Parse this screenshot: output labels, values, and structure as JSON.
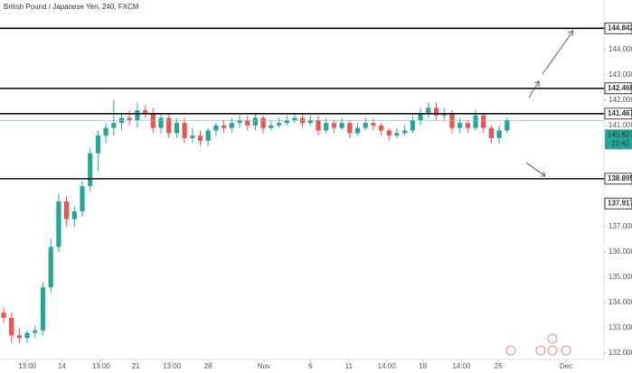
{
  "chart_data": {
    "type": "candlestick",
    "title": "British Pound / Japanese Yen, 240, FXCM",
    "open": [
      133.6,
      133.4,
      132.7,
      132.6,
      132.8,
      132.9,
      134.6,
      136.2,
      138.0,
      137.3,
      137.6,
      138.6,
      139.9,
      140.6,
      140.9,
      141.1,
      141.3,
      141.2,
      141.6,
      141.5,
      140.9,
      141.3,
      140.7,
      141.1,
      140.5,
      140.6,
      140.4,
      140.8,
      141.0,
      140.9,
      141.1,
      141.2,
      141.0,
      141.3,
      140.9,
      141.0,
      141.1,
      141.2,
      141.3,
      141.1,
      141.2,
      140.8,
      141.1,
      140.9,
      141.1,
      140.7,
      140.9,
      141.1,
      141.0,
      140.8,
      140.6,
      140.7,
      140.8,
      141.2,
      141.5,
      141.7,
      141.4,
      141.5,
      140.9,
      141.1,
      140.9,
      141.4,
      140.9,
      140.5,
      140.8
    ],
    "high": [
      133.8,
      133.6,
      133.0,
      132.9,
      133.1,
      134.8,
      136.5,
      138.3,
      138.2,
      137.8,
      138.8,
      140.1,
      140.8,
      141.1,
      142.0,
      141.5,
      141.6,
      141.9,
      141.8,
      141.7,
      141.5,
      141.5,
      141.3,
      141.3,
      140.9,
      140.8,
      140.9,
      141.1,
      141.2,
      141.3,
      141.4,
      141.4,
      141.5,
      141.4,
      141.2,
      141.3,
      141.4,
      141.5,
      141.5,
      141.4,
      141.4,
      141.3,
      141.2,
      141.3,
      141.2,
      141.1,
      141.3,
      141.3,
      141.1,
      140.9,
      140.9,
      141.0,
      141.4,
      141.7,
      141.9,
      141.9,
      141.7,
      141.6,
      141.3,
      141.2,
      141.6,
      141.5,
      141.0,
      141.0,
      141.3
    ],
    "low": [
      133.2,
      132.4,
      132.4,
      132.4,
      132.6,
      132.7,
      134.4,
      136.0,
      137.0,
      137.0,
      137.4,
      138.4,
      139.2,
      140.3,
      140.6,
      140.8,
      141.0,
      140.9,
      141.3,
      140.7,
      140.7,
      140.5,
      140.5,
      140.3,
      140.3,
      140.2,
      140.2,
      140.6,
      140.7,
      140.7,
      140.9,
      140.8,
      140.8,
      140.7,
      140.8,
      140.9,
      141.0,
      141.1,
      140.9,
      141.0,
      140.6,
      140.7,
      140.7,
      140.8,
      140.5,
      140.6,
      140.8,
      140.8,
      140.6,
      140.4,
      140.5,
      140.6,
      140.7,
      141.0,
      141.3,
      141.2,
      141.2,
      140.7,
      140.7,
      140.7,
      140.8,
      140.7,
      140.3,
      140.3,
      140.7
    ],
    "close": [
      133.4,
      132.7,
      132.6,
      132.8,
      132.9,
      134.6,
      136.2,
      138.0,
      137.3,
      137.6,
      138.6,
      139.9,
      140.6,
      140.9,
      141.1,
      141.3,
      141.2,
      141.6,
      141.5,
      140.9,
      141.3,
      140.7,
      141.1,
      140.5,
      140.6,
      140.4,
      140.8,
      141.0,
      140.9,
      141.1,
      141.2,
      141.0,
      141.3,
      140.9,
      141.0,
      141.1,
      141.2,
      141.3,
      141.1,
      141.2,
      140.8,
      141.1,
      140.9,
      141.1,
      140.7,
      140.9,
      141.1,
      141.0,
      140.8,
      140.6,
      140.7,
      140.8,
      141.2,
      141.5,
      141.7,
      141.4,
      141.5,
      140.9,
      141.1,
      140.9,
      141.4,
      140.9,
      140.5,
      140.8,
      141.2
    ],
    "up_color": "#26a69a",
    "down_color": "#ef5350",
    "xlim": [
      -0.46,
      76.32
    ],
    "ylim": [
      131.75,
      145.96
    ],
    "xticks": [
      {
        "value": 3,
        "label": "13:00"
      },
      {
        "value": 7.4,
        "label": "14"
      },
      {
        "value": 12.4,
        "label": "13:00"
      },
      {
        "value": 16.8,
        "label": "21"
      },
      {
        "value": 21.4,
        "label": "13:00"
      },
      {
        "value": 26,
        "label": "28"
      },
      {
        "value": 33.1,
        "label": "Nov"
      },
      {
        "value": 39,
        "label": "6"
      },
      {
        "value": 43.9,
        "label": "11"
      },
      {
        "value": 48.7,
        "label": "14:00"
      },
      {
        "value": 53.3,
        "label": "18"
      },
      {
        "value": 58.2,
        "label": "14:00"
      },
      {
        "value": 62.9,
        "label": "25"
      },
      {
        "value": 71.5,
        "label": "Dec"
      }
    ],
    "yticks": [
      {
        "value": 144,
        "label": "144.000"
      },
      {
        "value": 143,
        "label": "143.000"
      },
      {
        "value": 142,
        "label": "142.000"
      },
      {
        "value": 141,
        "label": "141.000"
      },
      {
        "value": 137,
        "label": "137.000"
      },
      {
        "value": 136,
        "label": "136.000"
      },
      {
        "value": 135,
        "label": "135.000"
      },
      {
        "value": 134,
        "label": "134.000"
      },
      {
        "value": 133,
        "label": "133.000"
      },
      {
        "value": 132,
        "label": "132.000"
      }
    ],
    "levels": [
      144.842,
      142.468,
      141.467,
      138.895
    ],
    "marker_level": 137.917,
    "last_price": 140.627,
    "countdown": "22:42"
  }
}
